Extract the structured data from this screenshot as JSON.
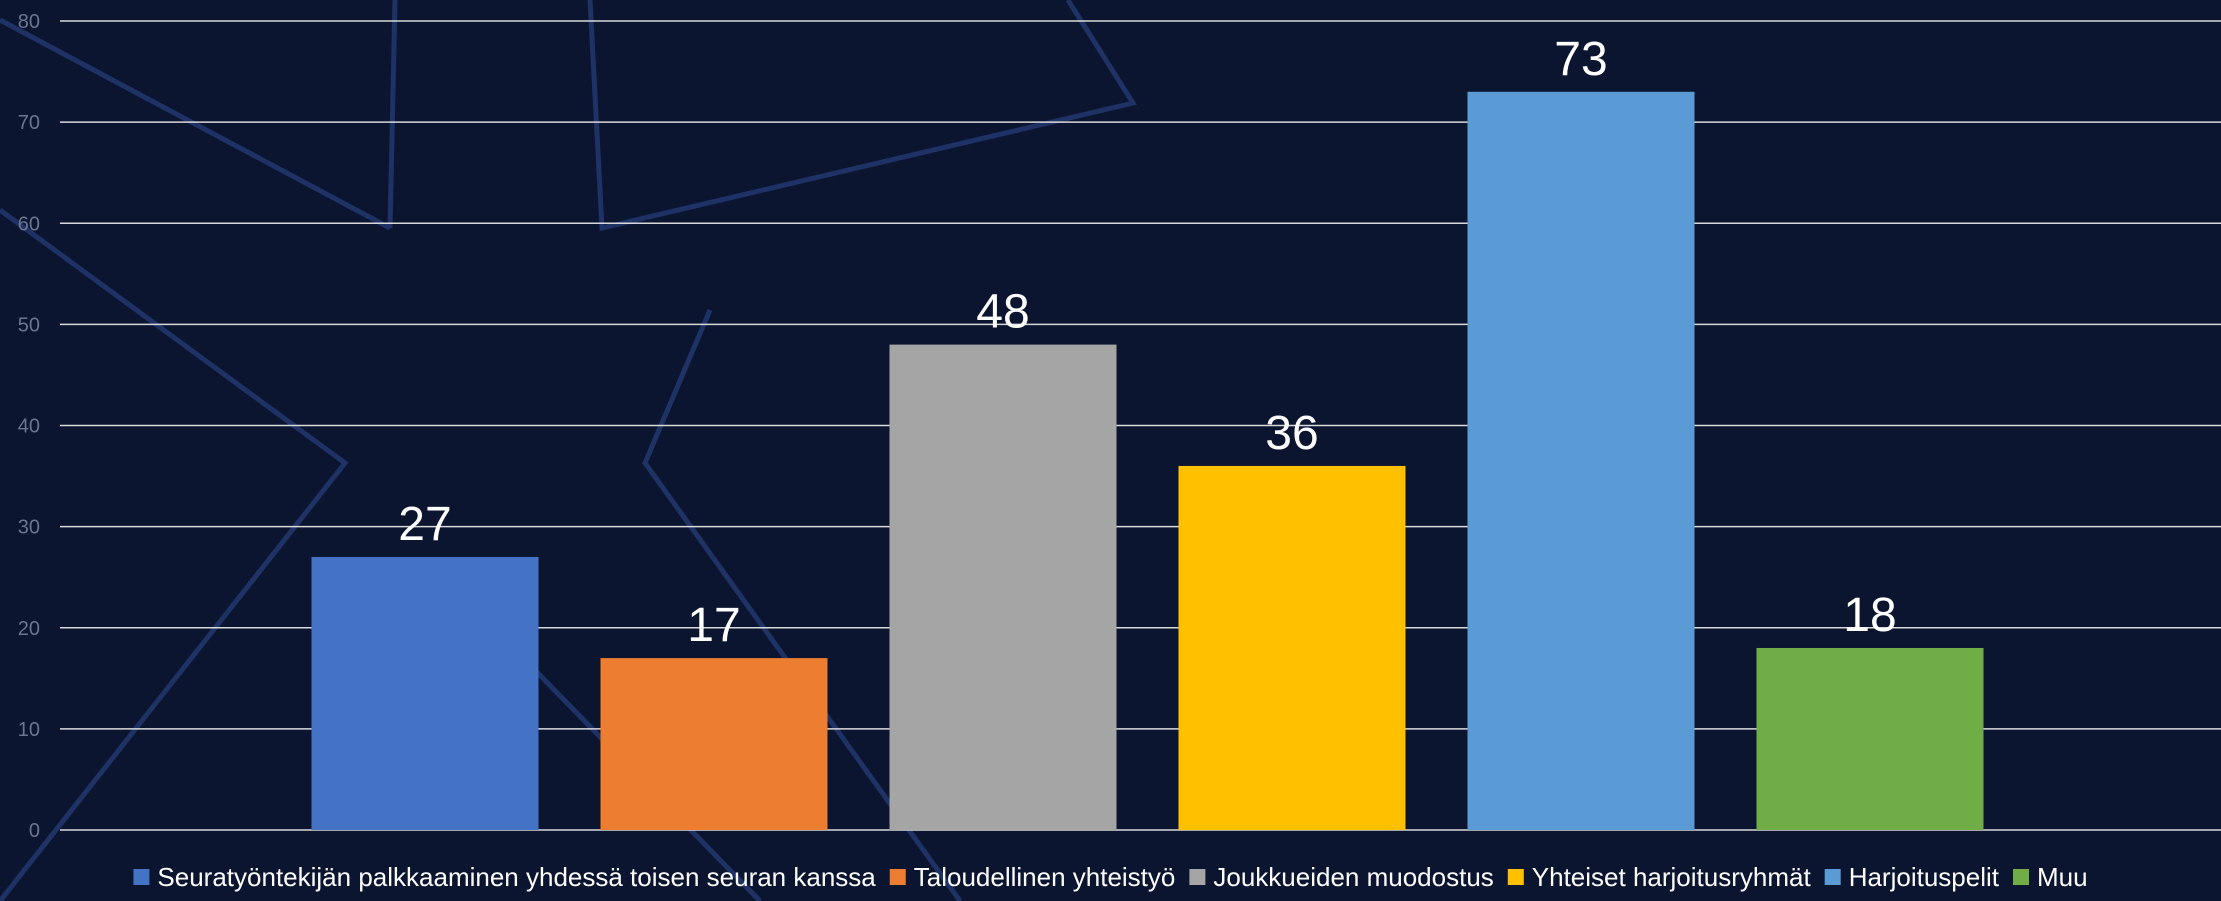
{
  "chart_data": {
    "type": "bar",
    "categories": [
      "Seuratyöntekijän palkkaaminen yhdessä toisen seuran kanssa",
      "Taloudellinen yhteistyö",
      "Joukkueiden muodostus",
      "Yhteiset harjoitusryhmät",
      "Harjoituspelit",
      "Muu"
    ],
    "values": [
      27,
      17,
      48,
      36,
      73,
      18
    ],
    "colors": [
      "#4472c4",
      "#ed7d31",
      "#a5a5a5",
      "#ffc000",
      "#5b9bd5",
      "#70ad47"
    ],
    "ylim": [
      0,
      80
    ],
    "yticks": [
      0,
      10,
      20,
      30,
      40,
      50,
      60,
      70,
      80
    ],
    "grid": true,
    "legend_position": "bottom",
    "title": "",
    "xlabel": "",
    "ylabel": ""
  },
  "colors": {
    "background": "#0b1530",
    "gridline": "#d9d9d9",
    "tick_text": "#6b7590",
    "data_label": "#ffffff",
    "decoration": "#1f3266"
  }
}
